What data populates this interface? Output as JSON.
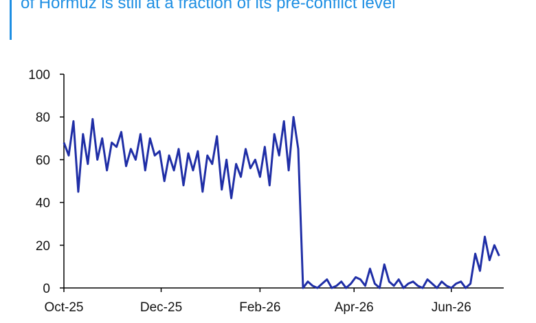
{
  "chart_data": {
    "type": "line",
    "title": "of Hormuz is still at a fraction of its pre-conflict level",
    "x": [
      0,
      3,
      6,
      9,
      12,
      15,
      18,
      21,
      24,
      27,
      30,
      33,
      36,
      39,
      42,
      45,
      48,
      51,
      54,
      57,
      60,
      63,
      66,
      69,
      72,
      75,
      78,
      81,
      84,
      87,
      90,
      93,
      96,
      99,
      102,
      105,
      108,
      111,
      114,
      117,
      120,
      123,
      126,
      129,
      132,
      135,
      138,
      141,
      144,
      147,
      150,
      153,
      156,
      159,
      162,
      165,
      168,
      171,
      174,
      177,
      180,
      183,
      186,
      189,
      192,
      195,
      198,
      201,
      204,
      207,
      210,
      213,
      216,
      219,
      222,
      225,
      228,
      231,
      234,
      237,
      240,
      243,
      246,
      249,
      252,
      255,
      258,
      261,
      264,
      267,
      270,
      273
    ],
    "values": [
      68,
      62,
      78,
      45,
      72,
      58,
      79,
      60,
      70,
      55,
      68,
      66,
      73,
      57,
      65,
      60,
      72,
      55,
      70,
      62,
      64,
      50,
      62,
      55,
      65,
      48,
      63,
      55,
      64,
      45,
      62,
      58,
      71,
      46,
      60,
      42,
      58,
      52,
      65,
      56,
      60,
      52,
      66,
      48,
      72,
      62,
      78,
      55,
      80,
      65,
      0,
      3,
      1,
      0,
      2,
      4,
      0,
      1,
      3,
      0,
      2,
      5,
      4,
      1,
      9,
      2,
      0,
      11,
      3,
      1,
      4,
      0,
      2,
      3,
      1,
      0,
      4,
      2,
      0,
      3,
      1,
      0,
      2,
      3,
      0,
      2,
      16,
      8,
      24,
      13,
      20,
      15
    ],
    "color": "#1f2ea6",
    "xlim": [
      0,
      275
    ],
    "xticks": [
      {
        "value": 0,
        "label": "Oct-25"
      },
      {
        "value": 61,
        "label": "Dec-25"
      },
      {
        "value": 123,
        "label": "Feb-26"
      },
      {
        "value": 182,
        "label": "Apr-26"
      },
      {
        "value": 243,
        "label": "Jun-26"
      }
    ],
    "ylim": [
      0,
      100
    ],
    "yticks": [
      0,
      20,
      40,
      60,
      80,
      100
    ]
  }
}
